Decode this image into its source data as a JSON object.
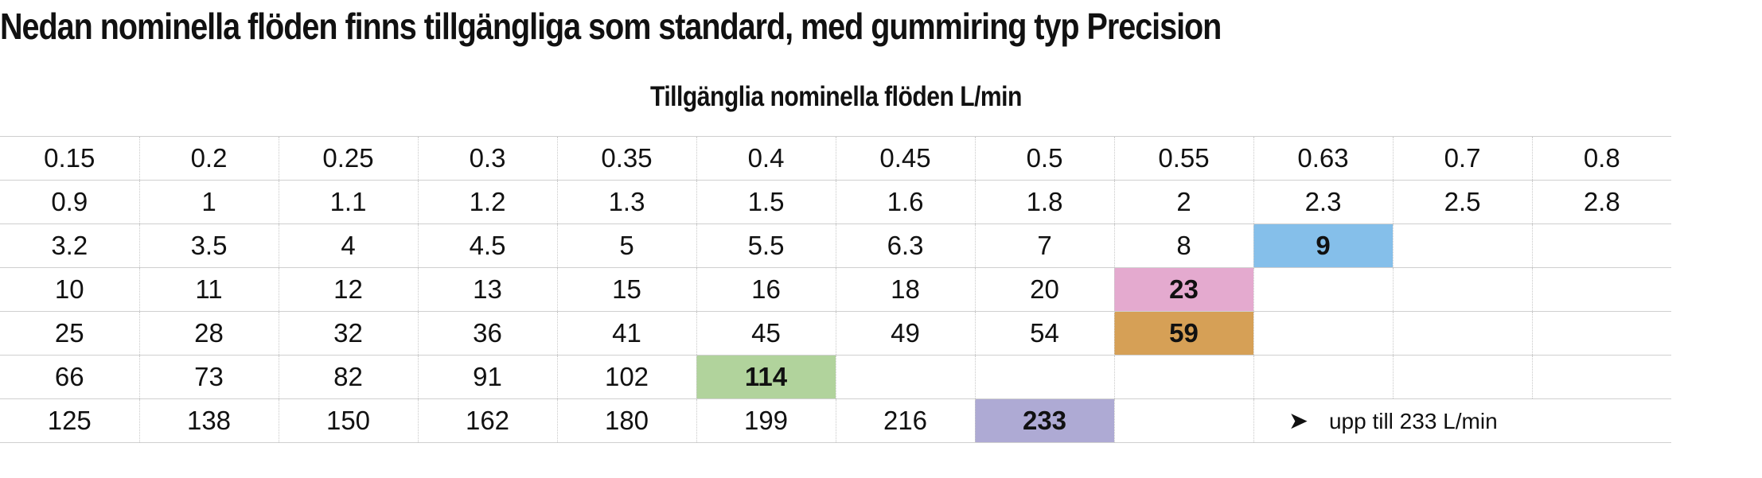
{
  "header": {
    "title": "Nedan nominella flöden finns tillgängliga som standard, med gummiring typ Precision",
    "table_caption": "Tillgänglia nominella flöden L/min"
  },
  "table": {
    "columns": 12,
    "rows": [
      [
        "0.15",
        "0.2",
        "0.25",
        "0.3",
        "0.35",
        "0.4",
        "0.45",
        "0.5",
        "0.55",
        "0.63",
        "0.7",
        "0.8"
      ],
      [
        "0.9",
        "1",
        "1.1",
        "1.2",
        "1.3",
        "1.5",
        "1.6",
        "1.8",
        "2",
        "2.3",
        "2.5",
        "2.8"
      ],
      [
        "3.2",
        "3.5",
        "4",
        "4.5",
        "5",
        "5.5",
        "6.3",
        "7",
        "8",
        "9",
        "",
        ""
      ],
      [
        "10",
        "11",
        "12",
        "13",
        "15",
        "16",
        "18",
        "20",
        "23",
        "",
        "",
        ""
      ],
      [
        "25",
        "28",
        "32",
        "36",
        "41",
        "45",
        "49",
        "54",
        "59",
        "",
        "",
        ""
      ],
      [
        "66",
        "73",
        "82",
        "91",
        "102",
        "114",
        "",
        "",
        "",
        "",
        "",
        ""
      ],
      [
        "125",
        "138",
        "150",
        "162",
        "180",
        "199",
        "216",
        "233",
        "",
        "",
        "",
        ""
      ]
    ],
    "highlights": [
      {
        "row": 2,
        "col": 9,
        "color": "#85bfea"
      },
      {
        "row": 3,
        "col": 8,
        "color": "#e4aacf"
      },
      {
        "row": 4,
        "col": 8,
        "color": "#d6a056"
      },
      {
        "row": 5,
        "col": 5,
        "color": "#b1d39c"
      },
      {
        "row": 6,
        "col": 7,
        "color": "#aeaad4"
      }
    ],
    "note": {
      "row": 6,
      "start_col": 9,
      "span": 2,
      "arrow_icon": "arrow-right-icon",
      "text": "upp till 233 L/min"
    }
  }
}
